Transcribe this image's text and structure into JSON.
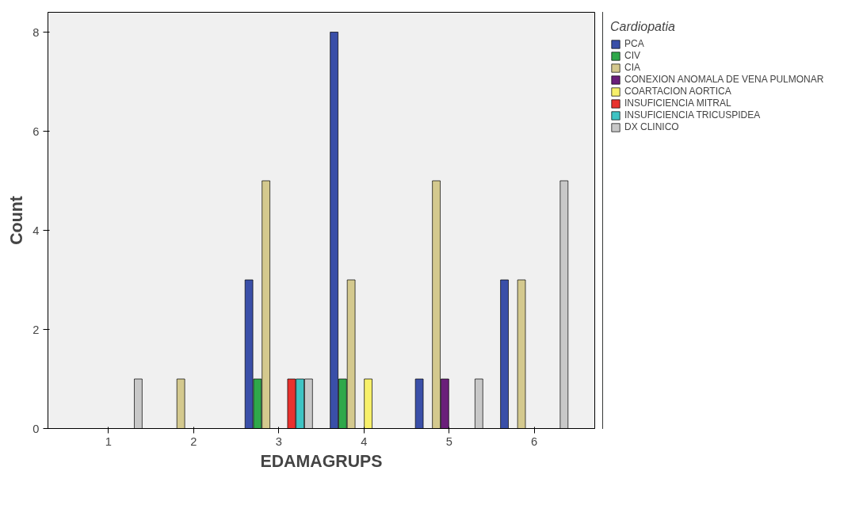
{
  "chart_data": {
    "type": "bar",
    "xlabel": "EDAMAGRUPS",
    "ylabel": "Count",
    "legend_title": "Cardiopatia",
    "categories": [
      "1",
      "2",
      "3",
      "4",
      "5",
      "6"
    ],
    "ylim": [
      0,
      8.4
    ],
    "yticks": [
      0,
      2,
      4,
      6,
      8
    ],
    "grid": false,
    "legend": "right",
    "series": [
      {
        "name": "PCA",
        "color": "#3a4fa8",
        "values": [
          null,
          null,
          3,
          8,
          1,
          3
        ]
      },
      {
        "name": "CIV",
        "color": "#2fa84a",
        "values": [
          null,
          null,
          1,
          1,
          null,
          null
        ]
      },
      {
        "name": "CIA",
        "color": "#d4c98e",
        "values": [
          null,
          1,
          5,
          3,
          5,
          3
        ]
      },
      {
        "name": "CONEXION ANOMALA DE VENA PULMONAR",
        "color": "#6a1f7a",
        "values": [
          null,
          null,
          null,
          null,
          1,
          null
        ]
      },
      {
        "name": "COARTACION AORTICA",
        "color": "#f7f06a",
        "values": [
          null,
          null,
          null,
          1,
          null,
          null
        ]
      },
      {
        "name": "INSUFICIENCIA MITRAL",
        "color": "#e8322e",
        "values": [
          null,
          null,
          1,
          null,
          null,
          null
        ]
      },
      {
        "name": "INSUFICIENCIA TRICUSPIDEA",
        "color": "#3fc4c4",
        "values": [
          null,
          null,
          1,
          null,
          null,
          null
        ]
      },
      {
        "name": "DX CLINICO",
        "color": "#c8c8c8",
        "values": [
          1,
          null,
          1,
          null,
          1,
          5
        ]
      }
    ]
  }
}
